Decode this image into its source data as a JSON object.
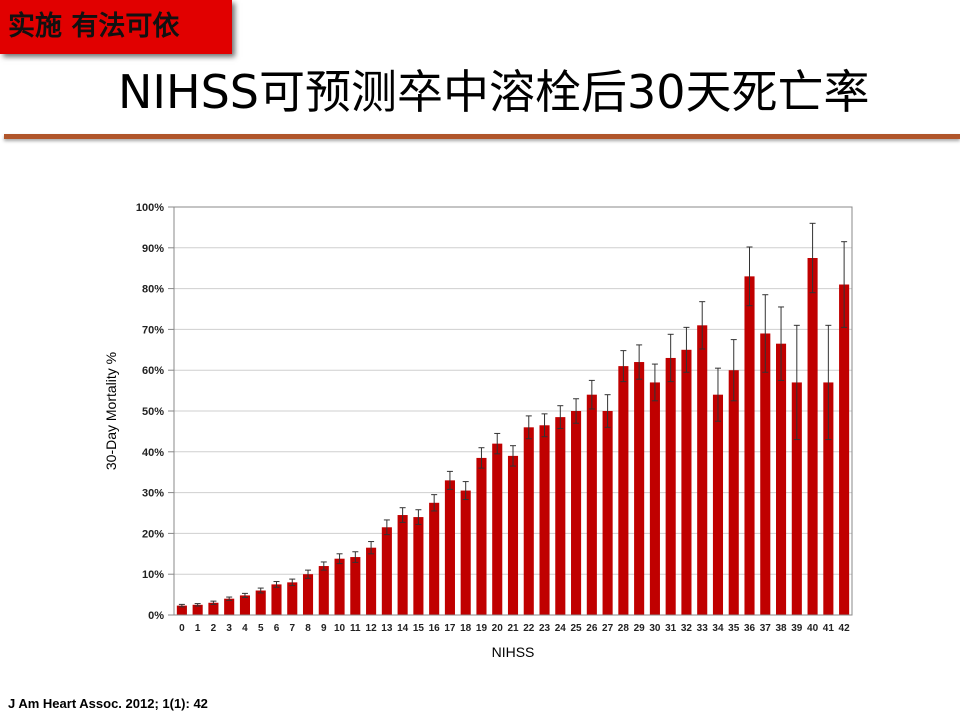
{
  "tag": {
    "label": "实施 有法可依",
    "color": "#e10000"
  },
  "slide": {
    "title": "NIHSS可预测卒中溶栓后30天死亡率"
  },
  "citation": "J Am Heart Assoc. 2012; 1(1): 42",
  "chart_data": {
    "type": "bar",
    "xlabel": "NIHSS",
    "ylabel": "30-Day Mortality %",
    "ylim": [
      0,
      100
    ],
    "yticks": [
      "0%",
      "10%",
      "20%",
      "30%",
      "40%",
      "50%",
      "60%",
      "70%",
      "80%",
      "90%",
      "100%"
    ],
    "grid": true,
    "bar_color": "#c00000",
    "categories": [
      "0",
      "1",
      "2",
      "3",
      "4",
      "5",
      "6",
      "7",
      "8",
      "9",
      "10",
      "11",
      "12",
      "13",
      "14",
      "15",
      "16",
      "17",
      "18",
      "19",
      "20",
      "21",
      "22",
      "23",
      "24",
      "25",
      "26",
      "27",
      "28",
      "29",
      "30",
      "31",
      "32",
      "33",
      "34",
      "35",
      "36",
      "37",
      "38",
      "39",
      "40",
      "41",
      "42"
    ],
    "values": [
      2.3,
      2.5,
      3.0,
      4.0,
      4.8,
      6.0,
      7.5,
      8.0,
      10.0,
      12.0,
      13.8,
      14.2,
      16.5,
      21.5,
      24.5,
      24.0,
      27.5,
      33.0,
      30.5,
      38.5,
      42.0,
      39.0,
      46.0,
      46.5,
      48.5,
      50.0,
      54.0,
      50.0,
      61.0,
      62.0,
      57.0,
      63.0,
      65.0,
      71.0,
      54.0,
      60.0,
      83.0,
      69.0,
      66.5,
      57.0,
      87.5,
      57.0,
      81.0
    ],
    "error": [
      0.3,
      0.3,
      0.4,
      0.4,
      0.5,
      0.6,
      0.7,
      0.8,
      1.0,
      1.0,
      1.2,
      1.3,
      1.5,
      1.8,
      1.8,
      1.8,
      2.0,
      2.2,
      2.2,
      2.5,
      2.5,
      2.5,
      2.8,
      2.8,
      2.8,
      3.0,
      3.5,
      4.0,
      3.8,
      4.2,
      4.5,
      5.8,
      5.5,
      5.8,
      6.5,
      7.5,
      7.2,
      9.5,
      9.0,
      14.0,
      8.5,
      14.0,
      10.5
    ]
  }
}
